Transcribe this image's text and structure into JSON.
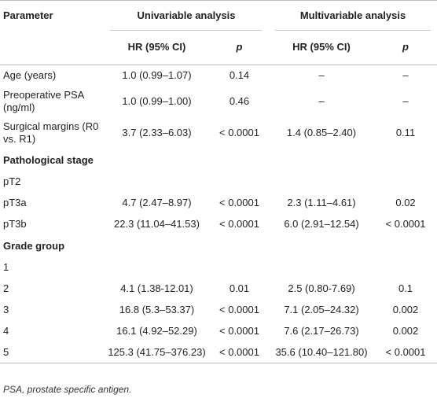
{
  "header": {
    "parameter": "Parameter",
    "univariable": "Univariable analysis",
    "multivariable": "Multivariable analysis",
    "hr_label": "HR (95% CI)",
    "p_label": "p"
  },
  "rows": [
    {
      "label": "Age (years)",
      "u_hr": "1.0 (0.99–1.07)",
      "u_p": "0.14",
      "m_hr": "–",
      "m_p": "–"
    },
    {
      "label": "Preoperative PSA (ng/ml)",
      "u_hr": "1.0 (0.99–1.00)",
      "u_p": "0.46",
      "m_hr": "–",
      "m_p": "–"
    },
    {
      "label": "Surgical margins (R0 vs. R1)",
      "u_hr": "3.7 (2.33–6.03)",
      "u_p": "< 0.0001",
      "m_hr": "1.4 (0.85–2.40)",
      "m_p": "0.11"
    }
  ],
  "sections": [
    {
      "title": "Pathological stage",
      "rows": [
        {
          "label": "pT2",
          "u_hr": "",
          "u_p": "",
          "m_hr": "",
          "m_p": ""
        },
        {
          "label": "pT3a",
          "u_hr": "4.7 (2.47–8.97)",
          "u_p": "< 0.0001",
          "m_hr": "2.3 (1.11–4.61)",
          "m_p": "0.02"
        },
        {
          "label": "pT3b",
          "u_hr": "22.3 (11.04–41.53)",
          "u_p": "< 0.0001",
          "m_hr": "6.0 (2.91–12.54)",
          "m_p": "< 0.0001"
        }
      ]
    },
    {
      "title": "Grade group",
      "rows": [
        {
          "label": "1",
          "u_hr": "",
          "u_p": "",
          "m_hr": "",
          "m_p": ""
        },
        {
          "label": "2",
          "u_hr": "4.1 (1.38-12.01)",
          "u_p": "0.01",
          "m_hr": "2.5 (0.80-7.69)",
          "m_p": "0.1"
        },
        {
          "label": "3",
          "u_hr": "16.8 (5.3–53.37)",
          "u_p": "< 0.0001",
          "m_hr": "7.1 (2.05–24.32)",
          "m_p": "0.002"
        },
        {
          "label": "4",
          "u_hr": "16.1 (4.92–52.29)",
          "u_p": "< 0.0001",
          "m_hr": "7.6 (2.17–26.73)",
          "m_p": "0.002"
        },
        {
          "label": "5",
          "u_hr": "125.3 (41.75–376.23)",
          "u_p": "< 0.0001",
          "m_hr": "35.6 (10.40–121.80)",
          "m_p": "< 0.0001"
        }
      ]
    }
  ],
  "footnote": "PSA, prostate specific antigen."
}
